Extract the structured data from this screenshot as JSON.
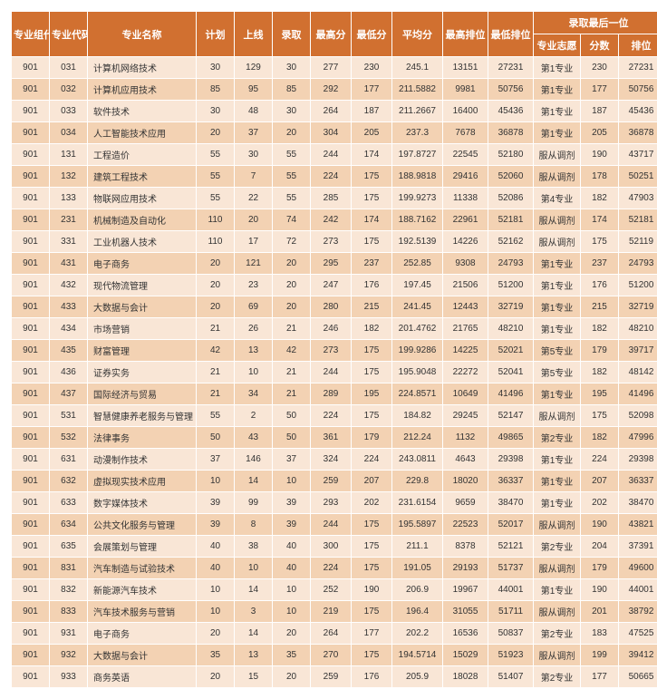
{
  "columns": {
    "group_code": "专业组代码",
    "major_code": "专业代码",
    "major_name": "专业名称",
    "plan": "计划",
    "online": "上线",
    "admit": "录取",
    "max": "最高分",
    "min": "最低分",
    "avg": "平均分",
    "max_rank": "最高排位",
    "min_rank": "最低排位",
    "last_group": "录取最后一位",
    "pref": "专业志愿",
    "score": "分数",
    "rank": "排位"
  },
  "col_widths": {
    "group_code": 42,
    "major_code": 42,
    "major_name": 120,
    "plan": 42,
    "online": 42,
    "admit": 42,
    "max": 45,
    "min": 45,
    "avg": 56,
    "max_rank": 50,
    "min_rank": 50,
    "pref": 52,
    "score": 42,
    "rank": 50
  },
  "style": {
    "header_bg": "#d17030",
    "row_odd_bg": "#f9e6d6",
    "row_even_bg": "#f3d2b3",
    "header_color": "#ffffff",
    "cell_color": "#333333",
    "border_color": "#ffffff",
    "font_size_header": 11,
    "font_size_body": 10
  },
  "rows": [
    {
      "group": "901",
      "code": "031",
      "name": "计算机网络技术",
      "plan": "30",
      "online": "129",
      "admit": "30",
      "max": "277",
      "min": "230",
      "avg": "245.1",
      "maxr": "13151",
      "minr": "27231",
      "pref": "第1专业",
      "score": "230",
      "rank": "27231"
    },
    {
      "group": "901",
      "code": "032",
      "name": "计算机应用技术",
      "plan": "85",
      "online": "95",
      "admit": "85",
      "max": "292",
      "min": "177",
      "avg": "211.5882",
      "maxr": "9981",
      "minr": "50756",
      "pref": "第1专业",
      "score": "177",
      "rank": "50756"
    },
    {
      "group": "901",
      "code": "033",
      "name": "软件技术",
      "plan": "30",
      "online": "48",
      "admit": "30",
      "max": "264",
      "min": "187",
      "avg": "211.2667",
      "maxr": "16400",
      "minr": "45436",
      "pref": "第1专业",
      "score": "187",
      "rank": "45436"
    },
    {
      "group": "901",
      "code": "034",
      "name": "人工智能技术应用",
      "plan": "20",
      "online": "37",
      "admit": "20",
      "max": "304",
      "min": "205",
      "avg": "237.3",
      "maxr": "7678",
      "minr": "36878",
      "pref": "第1专业",
      "score": "205",
      "rank": "36878"
    },
    {
      "group": "901",
      "code": "131",
      "name": "工程造价",
      "plan": "55",
      "online": "30",
      "admit": "55",
      "max": "244",
      "min": "174",
      "avg": "197.8727",
      "maxr": "22545",
      "minr": "52180",
      "pref": "服从调剂",
      "score": "190",
      "rank": "43717"
    },
    {
      "group": "901",
      "code": "132",
      "name": "建筑工程技术",
      "plan": "55",
      "online": "7",
      "admit": "55",
      "max": "224",
      "min": "175",
      "avg": "188.9818",
      "maxr": "29416",
      "minr": "52060",
      "pref": "服从调剂",
      "score": "178",
      "rank": "50251"
    },
    {
      "group": "901",
      "code": "133",
      "name": "物联网应用技术",
      "plan": "55",
      "online": "22",
      "admit": "55",
      "max": "285",
      "min": "175",
      "avg": "199.9273",
      "maxr": "11338",
      "minr": "52086",
      "pref": "第4专业",
      "score": "182",
      "rank": "47903"
    },
    {
      "group": "901",
      "code": "231",
      "name": "机械制造及自动化",
      "plan": "110",
      "online": "20",
      "admit": "74",
      "max": "242",
      "min": "174",
      "avg": "188.7162",
      "maxr": "22961",
      "minr": "52181",
      "pref": "服从调剂",
      "score": "174",
      "rank": "52181"
    },
    {
      "group": "901",
      "code": "331",
      "name": "工业机器人技术",
      "plan": "110",
      "online": "17",
      "admit": "72",
      "max": "273",
      "min": "175",
      "avg": "192.5139",
      "maxr": "14226",
      "minr": "52162",
      "pref": "服从调剂",
      "score": "175",
      "rank": "52119"
    },
    {
      "group": "901",
      "code": "431",
      "name": "电子商务",
      "plan": "20",
      "online": "121",
      "admit": "20",
      "max": "295",
      "min": "237",
      "avg": "252.85",
      "maxr": "9308",
      "minr": "24793",
      "pref": "第1专业",
      "score": "237",
      "rank": "24793"
    },
    {
      "group": "901",
      "code": "432",
      "name": "现代物流管理",
      "plan": "20",
      "online": "23",
      "admit": "20",
      "max": "247",
      "min": "176",
      "avg": "197.45",
      "maxr": "21506",
      "minr": "51200",
      "pref": "第1专业",
      "score": "176",
      "rank": "51200"
    },
    {
      "group": "901",
      "code": "433",
      "name": "大数据与会计",
      "plan": "20",
      "online": "69",
      "admit": "20",
      "max": "280",
      "min": "215",
      "avg": "241.45",
      "maxr": "12443",
      "minr": "32719",
      "pref": "第1专业",
      "score": "215",
      "rank": "32719"
    },
    {
      "group": "901",
      "code": "434",
      "name": "市场营销",
      "plan": "21",
      "online": "26",
      "admit": "21",
      "max": "246",
      "min": "182",
      "avg": "201.4762",
      "maxr": "21765",
      "minr": "48210",
      "pref": "第1专业",
      "score": "182",
      "rank": "48210"
    },
    {
      "group": "901",
      "code": "435",
      "name": "财富管理",
      "plan": "42",
      "online": "13",
      "admit": "42",
      "max": "273",
      "min": "175",
      "avg": "199.9286",
      "maxr": "14225",
      "minr": "52021",
      "pref": "第5专业",
      "score": "179",
      "rank": "39717"
    },
    {
      "group": "901",
      "code": "436",
      "name": "证券实务",
      "plan": "21",
      "online": "10",
      "admit": "21",
      "max": "244",
      "min": "175",
      "avg": "195.9048",
      "maxr": "22272",
      "minr": "52041",
      "pref": "第5专业",
      "score": "182",
      "rank": "48142"
    },
    {
      "group": "901",
      "code": "437",
      "name": "国际经济与贸易",
      "plan": "21",
      "online": "34",
      "admit": "21",
      "max": "289",
      "min": "195",
      "avg": "224.8571",
      "maxr": "10649",
      "minr": "41496",
      "pref": "第1专业",
      "score": "195",
      "rank": "41496"
    },
    {
      "group": "901",
      "code": "531",
      "name": "智慧健康养老服务与管理",
      "plan": "55",
      "online": "2",
      "admit": "50",
      "max": "224",
      "min": "175",
      "avg": "184.82",
      "maxr": "29245",
      "minr": "52147",
      "pref": "服从调剂",
      "score": "175",
      "rank": "52098"
    },
    {
      "group": "901",
      "code": "532",
      "name": "法律事务",
      "plan": "50",
      "online": "43",
      "admit": "50",
      "max": "361",
      "min": "179",
      "avg": "212.24",
      "maxr": "1132",
      "minr": "49865",
      "pref": "第2专业",
      "score": "182",
      "rank": "47996"
    },
    {
      "group": "901",
      "code": "631",
      "name": "动漫制作技术",
      "plan": "37",
      "online": "146",
      "admit": "37",
      "max": "324",
      "min": "224",
      "avg": "243.0811",
      "maxr": "4643",
      "minr": "29398",
      "pref": "第1专业",
      "score": "224",
      "rank": "29398"
    },
    {
      "group": "901",
      "code": "632",
      "name": "虚拟现实技术应用",
      "plan": "10",
      "online": "14",
      "admit": "10",
      "max": "259",
      "min": "207",
      "avg": "229.8",
      "maxr": "18020",
      "minr": "36337",
      "pref": "第1专业",
      "score": "207",
      "rank": "36337"
    },
    {
      "group": "901",
      "code": "633",
      "name": "数字媒体技术",
      "plan": "39",
      "online": "99",
      "admit": "39",
      "max": "293",
      "min": "202",
      "avg": "231.6154",
      "maxr": "9659",
      "minr": "38470",
      "pref": "第1专业",
      "score": "202",
      "rank": "38470"
    },
    {
      "group": "901",
      "code": "634",
      "name": "公共文化服务与管理",
      "plan": "39",
      "online": "8",
      "admit": "39",
      "max": "244",
      "min": "175",
      "avg": "195.5897",
      "maxr": "22523",
      "minr": "52017",
      "pref": "服从调剂",
      "score": "190",
      "rank": "43821"
    },
    {
      "group": "901",
      "code": "635",
      "name": "会展策划与管理",
      "plan": "40",
      "online": "38",
      "admit": "40",
      "max": "300",
      "min": "175",
      "avg": "211.1",
      "maxr": "8378",
      "minr": "52121",
      "pref": "第2专业",
      "score": "204",
      "rank": "37391"
    },
    {
      "group": "901",
      "code": "831",
      "name": "汽车制造与试验技术",
      "plan": "40",
      "online": "10",
      "admit": "40",
      "max": "224",
      "min": "175",
      "avg": "191.05",
      "maxr": "29193",
      "minr": "51737",
      "pref": "服从调剂",
      "score": "179",
      "rank": "49600"
    },
    {
      "group": "901",
      "code": "832",
      "name": "新能源汽车技术",
      "plan": "10",
      "online": "14",
      "admit": "10",
      "max": "252",
      "min": "190",
      "avg": "206.9",
      "maxr": "19967",
      "minr": "44001",
      "pref": "第1专业",
      "score": "190",
      "rank": "44001"
    },
    {
      "group": "901",
      "code": "833",
      "name": "汽车技术服务与营销",
      "plan": "10",
      "online": "3",
      "admit": "10",
      "max": "219",
      "min": "175",
      "avg": "196.4",
      "maxr": "31055",
      "minr": "51711",
      "pref": "服从调剂",
      "score": "201",
      "rank": "38792"
    },
    {
      "group": "901",
      "code": "931",
      "name": "电子商务",
      "plan": "20",
      "online": "14",
      "admit": "20",
      "max": "264",
      "min": "177",
      "avg": "202.2",
      "maxr": "16536",
      "minr": "50837",
      "pref": "第2专业",
      "score": "183",
      "rank": "47525"
    },
    {
      "group": "901",
      "code": "932",
      "name": "大数据与会计",
      "plan": "35",
      "online": "13",
      "admit": "35",
      "max": "270",
      "min": "175",
      "avg": "194.5714",
      "maxr": "15029",
      "minr": "51923",
      "pref": "服从调剂",
      "score": "199",
      "rank": "39412"
    },
    {
      "group": "901",
      "code": "933",
      "name": "商务英语",
      "plan": "20",
      "online": "15",
      "admit": "20",
      "max": "259",
      "min": "176",
      "avg": "205.9",
      "maxr": "18028",
      "minr": "51407",
      "pref": "第2专业",
      "score": "177",
      "rank": "50665"
    }
  ]
}
